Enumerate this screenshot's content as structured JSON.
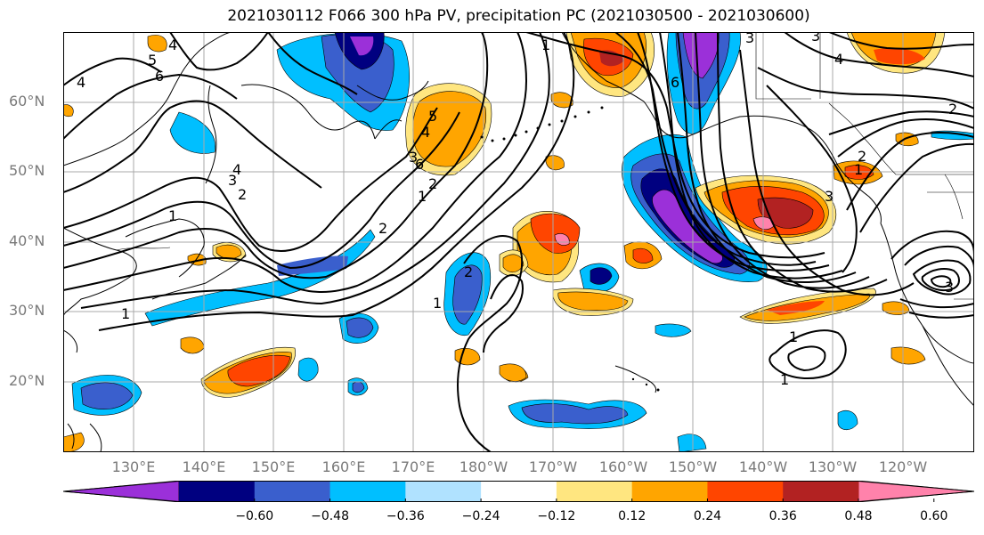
{
  "title": "2021030112 F066 300 hPa PV, precipitation PC (2021030500 - 2021030600)",
  "lat_labels": [
    "60°N",
    "50°N",
    "40°N",
    "30°N",
    "20°N"
  ],
  "lon_labels": [
    "130°E",
    "140°E",
    "150°E",
    "160°E",
    "170°E",
    "180°W",
    "170°W",
    "160°W",
    "150°W",
    "140°W",
    "130°W",
    "120°W"
  ],
  "colorbar": {
    "ticks": [
      "−0.60",
      "−0.48",
      "−0.36",
      "−0.24",
      "−0.12",
      "0.12",
      "0.24",
      "0.36",
      "0.48",
      "0.60"
    ],
    "colors": [
      "#9b30d9",
      "#000080",
      "#3a5fcd",
      "#00bfff",
      "#b0e2ff",
      "#ffffff",
      "#ffe680",
      "#ffa500",
      "#ff4500",
      "#b22222",
      "#ff82ab"
    ]
  },
  "contour_labels": [
    "4",
    "5",
    "6",
    "4",
    "1",
    "2",
    "3",
    "4",
    "1",
    "2",
    "1",
    "2",
    "3",
    "4",
    "5",
    "6",
    "1",
    "2",
    "1",
    "3",
    "6",
    "3",
    "2",
    "1",
    "2",
    "3",
    "4",
    "1",
    "3",
    "1"
  ],
  "map_state": {
    "lon_range": [
      "120°E",
      "110°W"
    ],
    "lat_range": [
      "10°N",
      "70°N"
    ],
    "grid": true,
    "field_colors": {
      "purple": "#9b30d9",
      "navy": "#000080",
      "blue": "#3a5fcd",
      "cyan": "#00bfff",
      "lightblue": "#b0e2ff",
      "yellow": "#ffe680",
      "orange": "#ffa500",
      "red": "#ff4500",
      "darkred": "#b22222",
      "pink": "#ff82ab"
    }
  }
}
